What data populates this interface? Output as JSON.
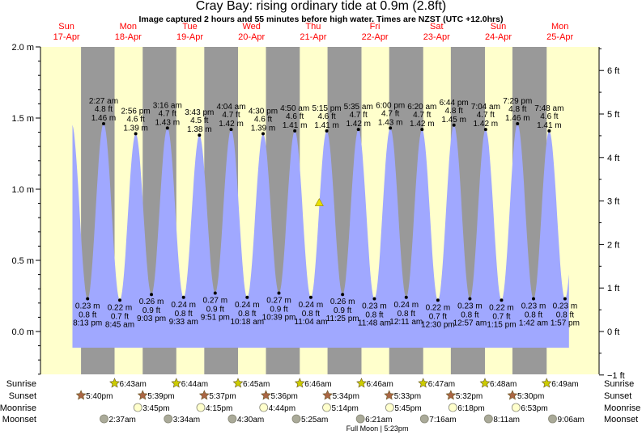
{
  "title": "Cray Bay: rising  ordinary tide at 0.9m (2.8ft)",
  "subtitle": "Image captured 2 hours and 55 minutes before high water. Times are NZST (UTC +12.0hrs)",
  "colors": {
    "day": "#ffffcc",
    "night": "#999999",
    "water": "#a0a8ff",
    "day_label": "#ff0000",
    "sunrise": "#cccc00",
    "sunset": "#aa6644",
    "moonrise": "#ffffcc",
    "moonset": "#aaaa99",
    "marker": "#e8e000"
  },
  "days": [
    {
      "dow": "Sun",
      "date": "17-Apr"
    },
    {
      "dow": "Mon",
      "date": "18-Apr"
    },
    {
      "dow": "Tue",
      "date": "19-Apr"
    },
    {
      "dow": "Wed",
      "date": "20-Apr"
    },
    {
      "dow": "Thu",
      "date": "21-Apr"
    },
    {
      "dow": "Fri",
      "date": "22-Apr"
    },
    {
      "dow": "Sat",
      "date": "23-Apr"
    },
    {
      "dow": "Sun",
      "date": "24-Apr"
    },
    {
      "dow": "Mon",
      "date": "25-Apr"
    }
  ],
  "chart_data": {
    "type": "area",
    "title": "Cray Bay: rising  ordinary tide at 0.9m (2.8ft)",
    "ylim_m": [
      -0.3,
      2.0
    ],
    "left_axis_ticks": [
      "2.0 m",
      "1.5 m",
      "1.0 m",
      "0.5 m",
      "0.0 m"
    ],
    "right_axis_ticks": [
      "6 ft",
      "5 ft",
      "4 ft",
      "3 ft",
      "2 ft",
      "1 ft",
      "0 ft",
      "−1 ft"
    ],
    "current": {
      "date": "21-Apr",
      "time": "2:20 pm",
      "m": 0.9,
      "ft": 2.8
    },
    "tides": [
      {
        "type": "low",
        "date": "17-Apr",
        "time": "8:13 pm",
        "m": "0.23 m",
        "ft": "0.8 ft"
      },
      {
        "type": "high",
        "date": "18-Apr",
        "time": "2:27 am",
        "m": "1.46 m",
        "ft": "4.8 ft"
      },
      {
        "type": "low",
        "date": "18-Apr",
        "time": "8:45 am",
        "m": "0.22 m",
        "ft": "0.7 ft"
      },
      {
        "type": "high",
        "date": "18-Apr",
        "time": "2:56 pm",
        "m": "1.39 m",
        "ft": "4.6 ft"
      },
      {
        "type": "low",
        "date": "18-Apr",
        "time": "9:03 pm",
        "m": "0.26 m",
        "ft": "0.9 ft"
      },
      {
        "type": "high",
        "date": "19-Apr",
        "time": "3:16 am",
        "m": "1.43 m",
        "ft": "4.7 ft"
      },
      {
        "type": "low",
        "date": "19-Apr",
        "time": "9:33 am",
        "m": "0.24 m",
        "ft": "0.8 ft"
      },
      {
        "type": "high",
        "date": "19-Apr",
        "time": "3:43 pm",
        "m": "1.38 m",
        "ft": "4.5 ft"
      },
      {
        "type": "low",
        "date": "19-Apr",
        "time": "9:51 pm",
        "m": "0.27 m",
        "ft": "0.9 ft"
      },
      {
        "type": "high",
        "date": "20-Apr",
        "time": "4:04 am",
        "m": "1.42 m",
        "ft": "4.7 ft"
      },
      {
        "type": "low",
        "date": "20-Apr",
        "time": "10:18 am",
        "m": "0.24 m",
        "ft": "0.8 ft"
      },
      {
        "type": "high",
        "date": "20-Apr",
        "time": "4:30 pm",
        "m": "1.39 m",
        "ft": "4.6 ft"
      },
      {
        "type": "low",
        "date": "20-Apr",
        "time": "10:39 pm",
        "m": "0.27 m",
        "ft": "0.9 ft"
      },
      {
        "type": "high",
        "date": "21-Apr",
        "time": "4:50 am",
        "m": "1.41 m",
        "ft": "4.6 ft"
      },
      {
        "type": "low",
        "date": "21-Apr",
        "time": "11:04 am",
        "m": "0.24 m",
        "ft": "0.8 ft"
      },
      {
        "type": "high",
        "date": "21-Apr",
        "time": "5:15 pm",
        "m": "1.41 m",
        "ft": "4.6 ft"
      },
      {
        "type": "low",
        "date": "21-Apr",
        "time": "11:25 pm",
        "m": "0.26 m",
        "ft": "0.9 ft"
      },
      {
        "type": "high",
        "date": "22-Apr",
        "time": "5:35 am",
        "m": "1.42 m",
        "ft": "4.7 ft"
      },
      {
        "type": "low",
        "date": "22-Apr",
        "time": "11:48 am",
        "m": "0.23 m",
        "ft": "0.8 ft"
      },
      {
        "type": "high",
        "date": "22-Apr",
        "time": "6:00 pm",
        "m": "1.43 m",
        "ft": "4.7 ft"
      },
      {
        "type": "low",
        "date": "23-Apr",
        "time": "12:11 am",
        "m": "0.24 m",
        "ft": "0.8 ft"
      },
      {
        "type": "high",
        "date": "23-Apr",
        "time": "6:20 am",
        "m": "1.42 m",
        "ft": "4.7 ft"
      },
      {
        "type": "low",
        "date": "23-Apr",
        "time": "12:30 pm",
        "m": "0.22 m",
        "ft": "0.7 ft"
      },
      {
        "type": "high",
        "date": "23-Apr",
        "time": "6:44 pm",
        "m": "1.45 m",
        "ft": "4.8 ft"
      },
      {
        "type": "low",
        "date": "24-Apr",
        "time": "12:57 am",
        "m": "0.23 m",
        "ft": "0.8 ft"
      },
      {
        "type": "high",
        "date": "24-Apr",
        "time": "7:04 am",
        "m": "1.42 m",
        "ft": "4.7 ft"
      },
      {
        "type": "low",
        "date": "24-Apr",
        "time": "1:15 pm",
        "m": "0.22 m",
        "ft": "0.7 ft"
      },
      {
        "type": "high",
        "date": "24-Apr",
        "time": "7:29 pm",
        "m": "1.46 m",
        "ft": "4.8 ft"
      },
      {
        "type": "low",
        "date": "25-Apr",
        "time": "1:42 am",
        "m": "0.23 m",
        "ft": "0.8 ft"
      },
      {
        "type": "high",
        "date": "25-Apr",
        "time": "7:48 am",
        "m": "1.41 m",
        "ft": "4.6 ft"
      },
      {
        "type": "low",
        "date": "25-Apr",
        "time": "1:57 pm",
        "m": "0.23 m",
        "ft": "0.8 ft"
      }
    ]
  },
  "rows": {
    "sunrise": {
      "label": "Sunrise",
      "events": [
        {
          "date": "18-Apr",
          "time": "6:43am"
        },
        {
          "date": "19-Apr",
          "time": "6:44am"
        },
        {
          "date": "20-Apr",
          "time": "6:45am"
        },
        {
          "date": "21-Apr",
          "time": "6:46am"
        },
        {
          "date": "22-Apr",
          "time": "6:46am"
        },
        {
          "date": "23-Apr",
          "time": "6:47am"
        },
        {
          "date": "24-Apr",
          "time": "6:48am"
        },
        {
          "date": "25-Apr",
          "time": "6:49am"
        }
      ]
    },
    "sunset": {
      "label": "Sunset",
      "events": [
        {
          "date": "17-Apr",
          "time": "5:40pm"
        },
        {
          "date": "18-Apr",
          "time": "5:39pm"
        },
        {
          "date": "19-Apr",
          "time": "5:37pm"
        },
        {
          "date": "20-Apr",
          "time": "5:36pm"
        },
        {
          "date": "21-Apr",
          "time": "5:34pm"
        },
        {
          "date": "22-Apr",
          "time": "5:33pm"
        },
        {
          "date": "23-Apr",
          "time": "5:32pm"
        },
        {
          "date": "24-Apr",
          "time": "5:30pm"
        }
      ]
    },
    "moonrise": {
      "label": "Moonrise",
      "events": [
        {
          "date": "18-Apr",
          "time": "3:45pm"
        },
        {
          "date": "19-Apr",
          "time": "4:15pm"
        },
        {
          "date": "20-Apr",
          "time": "4:44pm"
        },
        {
          "date": "21-Apr",
          "time": "5:14pm"
        },
        {
          "date": "22-Apr",
          "time": "5:45pm"
        },
        {
          "date": "23-Apr",
          "time": "6:18pm"
        },
        {
          "date": "24-Apr",
          "time": "6:53pm"
        }
      ]
    },
    "moonset": {
      "label": "Moonset",
      "events": [
        {
          "date": "18-Apr",
          "time": "2:37am"
        },
        {
          "date": "19-Apr",
          "time": "3:34am"
        },
        {
          "date": "20-Apr",
          "time": "4:30am"
        },
        {
          "date": "21-Apr",
          "time": "5:25am"
        },
        {
          "date": "22-Apr",
          "time": "6:21am"
        },
        {
          "date": "23-Apr",
          "time": "7:16am"
        },
        {
          "date": "24-Apr",
          "time": "8:11am"
        },
        {
          "date": "25-Apr",
          "time": "9:06am"
        }
      ]
    }
  },
  "moon_phase": "Full Moon | 5:23pm"
}
